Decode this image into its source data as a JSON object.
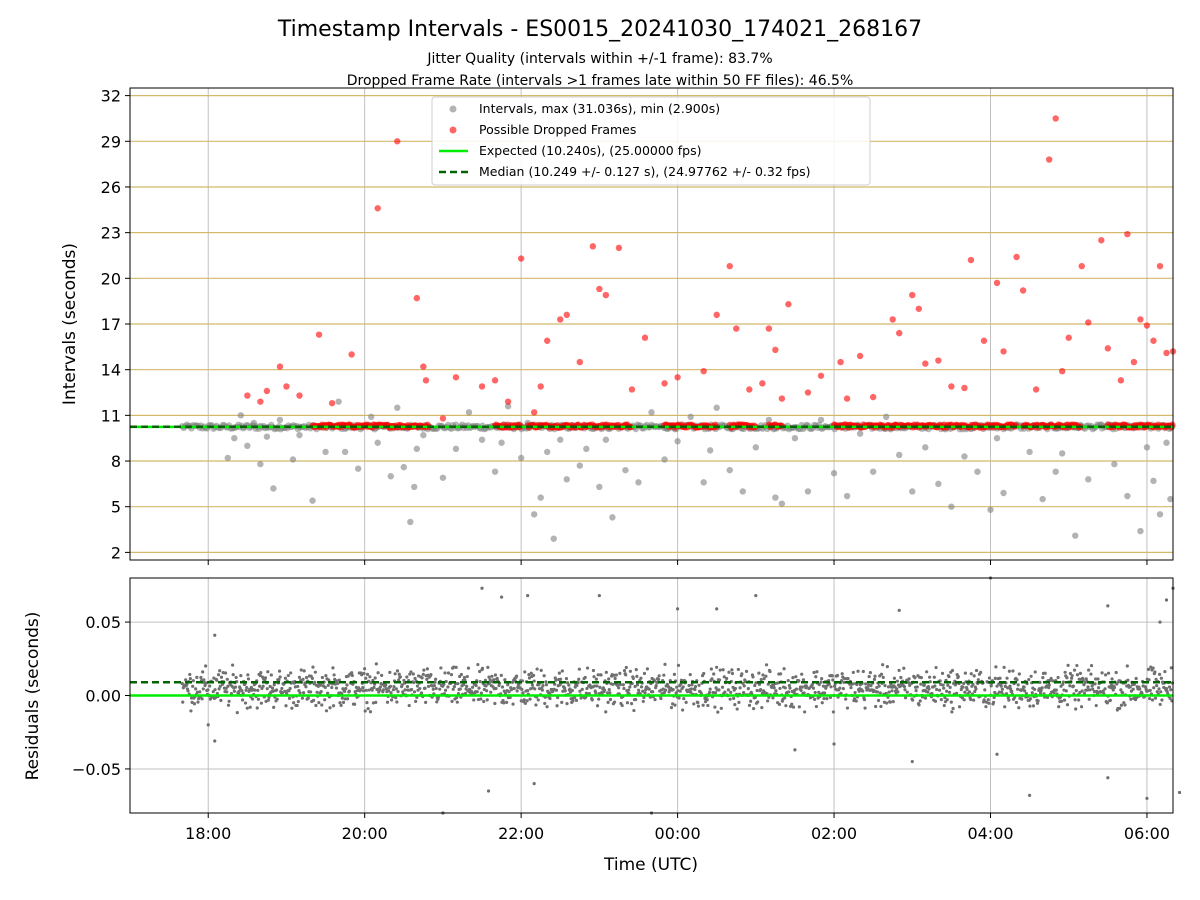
{
  "chart_data": [
    {
      "type": "scatter",
      "panel": "intervals",
      "title": "Timestamp Intervals - ES0015_20241030_174021_268167",
      "subtitle_lines": [
        "Jitter Quality (intervals within +/-1 frame): 83.7%",
        "Dropped Frame Rate (intervals >1 frames late within 50 FF files): 46.5%"
      ],
      "ylabel": "Intervals (seconds)",
      "x_start": "17:00",
      "x_end": "06:20",
      "xlim_hours": [
        17.0,
        30.333
      ],
      "ylim": [
        1.5,
        32.5
      ],
      "y_ticks": [
        2,
        5,
        8,
        11,
        14,
        17,
        20,
        23,
        26,
        29,
        32
      ],
      "grid": true,
      "legend_position": "top-center",
      "colors": {
        "intervals": "#808080",
        "dropped": "#ff0000",
        "expected": "#00ee00",
        "median": "#006400",
        "hgrid": "#d4b96a",
        "vgrid": "#c0c0c0"
      },
      "series": [
        {
          "name": "Intervals, max (31.036s), min (2.900s)",
          "kind": "scatter",
          "band": {
            "center": 10.24,
            "spread": 0.15
          },
          "scatter_points": [
            [
              "18:15",
              8.2
            ],
            [
              "18:20",
              9.5
            ],
            [
              "18:25",
              11.0
            ],
            [
              "18:30",
              9.0
            ],
            [
              "18:35",
              10.5
            ],
            [
              "18:40",
              7.8
            ],
            [
              "18:45",
              9.6
            ],
            [
              "18:50",
              6.2
            ],
            [
              "18:55",
              10.7
            ],
            [
              "19:05",
              8.1
            ],
            [
              "19:10",
              9.7
            ],
            [
              "19:20",
              5.4
            ],
            [
              "19:30",
              8.6
            ],
            [
              "19:40",
              11.9
            ],
            [
              "19:45",
              8.6
            ],
            [
              "19:55",
              7.5
            ],
            [
              "20:05",
              10.9
            ],
            [
              "20:10",
              9.2
            ],
            [
              "20:20",
              7.0
            ],
            [
              "20:25",
              11.5
            ],
            [
              "20:30",
              7.6
            ],
            [
              "20:35",
              4.0
            ],
            [
              "20:38",
              6.3
            ],
            [
              "20:40",
              8.8
            ],
            [
              "20:45",
              9.7
            ],
            [
              "21:00",
              6.9
            ],
            [
              "21:10",
              8.8
            ],
            [
              "21:20",
              11.2
            ],
            [
              "21:30",
              9.4
            ],
            [
              "21:40",
              7.3
            ],
            [
              "21:45",
              9.2
            ],
            [
              "21:50",
              11.6
            ],
            [
              "22:00",
              8.2
            ],
            [
              "22:05",
              10.5
            ],
            [
              "22:10",
              4.5
            ],
            [
              "22:15",
              5.6
            ],
            [
              "22:20",
              8.6
            ],
            [
              "22:25",
              2.9
            ],
            [
              "22:30",
              9.4
            ],
            [
              "22:35",
              6.8
            ],
            [
              "22:45",
              7.7
            ],
            [
              "22:50",
              8.8
            ],
            [
              "23:00",
              6.3
            ],
            [
              "23:05",
              9.4
            ],
            [
              "23:10",
              4.3
            ],
            [
              "23:20",
              7.4
            ],
            [
              "23:30",
              6.6
            ],
            [
              "23:40",
              11.2
            ],
            [
              "23:50",
              8.1
            ],
            [
              "00:00",
              9.3
            ],
            [
              "00:10",
              10.9
            ],
            [
              "00:20",
              6.6
            ],
            [
              "00:25",
              8.7
            ],
            [
              "00:30",
              11.5
            ],
            [
              "00:40",
              7.4
            ],
            [
              "00:50",
              6.0
            ],
            [
              "01:00",
              8.9
            ],
            [
              "01:10",
              10.7
            ],
            [
              "01:15",
              5.6
            ],
            [
              "01:20",
              5.2
            ],
            [
              "01:30",
              9.5
            ],
            [
              "01:40",
              6.0
            ],
            [
              "01:50",
              10.7
            ],
            [
              "02:00",
              7.2
            ],
            [
              "02:10",
              5.7
            ],
            [
              "02:20",
              9.8
            ],
            [
              "02:30",
              7.3
            ],
            [
              "02:40",
              10.9
            ],
            [
              "02:50",
              8.4
            ],
            [
              "03:00",
              6.0
            ],
            [
              "03:10",
              8.9
            ],
            [
              "03:20",
              6.5
            ],
            [
              "03:30",
              5.0
            ],
            [
              "03:40",
              8.3
            ],
            [
              "03:50",
              7.3
            ],
            [
              "04:00",
              4.8
            ],
            [
              "04:05",
              9.5
            ],
            [
              "04:10",
              5.9
            ],
            [
              "04:20",
              10.4
            ],
            [
              "04:30",
              8.6
            ],
            [
              "04:40",
              5.5
            ],
            [
              "04:50",
              7.3
            ],
            [
              "04:55",
              8.5
            ],
            [
              "05:05",
              3.1
            ],
            [
              "05:15",
              6.8
            ],
            [
              "05:25",
              10.4
            ],
            [
              "05:35",
              7.8
            ],
            [
              "05:45",
              5.7
            ],
            [
              "05:55",
              3.4
            ],
            [
              "06:00",
              8.9
            ],
            [
              "06:05",
              6.7
            ],
            [
              "06:10",
              4.5
            ],
            [
              "06:15",
              9.2
            ],
            [
              "06:18",
              5.5
            ]
          ]
        },
        {
          "name": "Possible Dropped Frames",
          "kind": "scatter",
          "band": {
            "center": 10.3,
            "spread": 0.1
          },
          "scatter_points": [
            [
              "18:30",
              12.3
            ],
            [
              "18:40",
              11.9
            ],
            [
              "18:45",
              12.6
            ],
            [
              "18:55",
              14.2
            ],
            [
              "19:00",
              12.9
            ],
            [
              "19:10",
              12.3
            ],
            [
              "19:25",
              16.3
            ],
            [
              "19:35",
              11.8
            ],
            [
              "19:50",
              15.0
            ],
            [
              "20:10",
              24.6
            ],
            [
              "20:25",
              29.0
            ],
            [
              "20:40",
              18.7
            ],
            [
              "20:45",
              14.2
            ],
            [
              "20:47",
              13.3
            ],
            [
              "21:00",
              10.8
            ],
            [
              "21:10",
              13.5
            ],
            [
              "21:30",
              12.9
            ],
            [
              "21:40",
              13.3
            ],
            [
              "21:50",
              11.9
            ],
            [
              "22:00",
              21.3
            ],
            [
              "22:10",
              11.2
            ],
            [
              "22:15",
              12.9
            ],
            [
              "22:20",
              15.9
            ],
            [
              "22:30",
              17.3
            ],
            [
              "22:35",
              17.6
            ],
            [
              "22:45",
              14.5
            ],
            [
              "22:55",
              22.1
            ],
            [
              "23:00",
              19.3
            ],
            [
              "23:05",
              18.9
            ],
            [
              "23:15",
              22.0
            ],
            [
              "23:25",
              12.7
            ],
            [
              "23:35",
              16.1
            ],
            [
              "23:50",
              13.1
            ],
            [
              "00:00",
              13.5
            ],
            [
              "00:20",
              13.9
            ],
            [
              "00:30",
              17.6
            ],
            [
              "00:40",
              20.8
            ],
            [
              "00:45",
              16.7
            ],
            [
              "00:55",
              12.7
            ],
            [
              "01:05",
              13.1
            ],
            [
              "01:10",
              16.7
            ],
            [
              "01:15",
              15.3
            ],
            [
              "01:20",
              12.1
            ],
            [
              "01:25",
              18.3
            ],
            [
              "01:40",
              12.5
            ],
            [
              "01:50",
              13.6
            ],
            [
              "02:05",
              14.5
            ],
            [
              "02:10",
              12.1
            ],
            [
              "02:20",
              14.9
            ],
            [
              "02:30",
              12.2
            ],
            [
              "02:45",
              17.3
            ],
            [
              "02:50",
              16.4
            ],
            [
              "03:00",
              18.9
            ],
            [
              "03:05",
              18.0
            ],
            [
              "03:10",
              14.4
            ],
            [
              "03:20",
              14.6
            ],
            [
              "03:30",
              12.9
            ],
            [
              "03:40",
              12.8
            ],
            [
              "03:45",
              21.2
            ],
            [
              "03:55",
              15.9
            ],
            [
              "04:05",
              19.7
            ],
            [
              "04:10",
              15.2
            ],
            [
              "04:20",
              21.4
            ],
            [
              "04:25",
              19.2
            ],
            [
              "04:35",
              12.7
            ],
            [
              "04:45",
              27.8
            ],
            [
              "04:50",
              30.5
            ],
            [
              "04:55",
              13.9
            ],
            [
              "05:00",
              16.1
            ],
            [
              "05:10",
              20.8
            ],
            [
              "05:15",
              17.1
            ],
            [
              "05:25",
              22.5
            ],
            [
              "05:30",
              15.4
            ],
            [
              "05:40",
              13.3
            ],
            [
              "05:45",
              22.9
            ],
            [
              "05:50",
              14.5
            ],
            [
              "05:55",
              17.3
            ],
            [
              "06:00",
              16.9
            ],
            [
              "06:05",
              15.9
            ],
            [
              "06:10",
              20.8
            ],
            [
              "06:15",
              15.1
            ],
            [
              "06:20",
              15.2
            ]
          ]
        },
        {
          "name": "Expected (10.240s), (25.00000 fps)",
          "kind": "hline",
          "y": 10.24,
          "style": "solid"
        },
        {
          "name": "Median (10.249 +/- 0.127 s), (24.97762 +/- 0.32 fps)",
          "kind": "hline",
          "y": 10.249,
          "style": "dashed"
        }
      ]
    },
    {
      "type": "scatter",
      "panel": "residuals",
      "xlabel": "Time (UTC)",
      "ylabel": "Residuals (seconds)",
      "ylim": [
        -0.08,
        0.08
      ],
      "y_ticks": [
        0.05,
        0.0,
        -0.05
      ],
      "y_tick_labels": [
        "0.05",
        "0.00",
        "−0.05"
      ],
      "x_ticks": [
        "18:00",
        "20:00",
        "22:00",
        "00:00",
        "02:00",
        "04:00",
        "06:00"
      ],
      "grid": true,
      "series": [
        {
          "name": "residuals",
          "kind": "scatter",
          "band": {
            "center": 0.005,
            "spread": 0.012
          },
          "outliers": [
            [
              "18:05",
              0.041
            ],
            [
              "18:05",
              -0.031
            ],
            [
              "18:00",
              -0.02
            ],
            [
              "21:00",
              -0.08
            ],
            [
              "21:30",
              0.073
            ],
            [
              "21:35",
              -0.065
            ],
            [
              "21:45",
              0.067
            ],
            [
              "22:05",
              0.068
            ],
            [
              "22:10",
              -0.06
            ],
            [
              "23:00",
              0.068
            ],
            [
              "23:40",
              -0.08
            ],
            [
              "00:00",
              0.059
            ],
            [
              "00:30",
              0.059
            ],
            [
              "01:00",
              0.068
            ],
            [
              "01:30",
              -0.037
            ],
            [
              "02:00",
              -0.033
            ],
            [
              "02:50",
              0.058
            ],
            [
              "03:00",
              -0.045
            ],
            [
              "04:00",
              0.08
            ],
            [
              "04:05",
              -0.04
            ],
            [
              "04:30",
              -0.068
            ],
            [
              "05:30",
              0.061
            ],
            [
              "05:30",
              -0.056
            ],
            [
              "06:15",
              0.065
            ],
            [
              "06:10",
              0.05
            ],
            [
              "06:20",
              0.073
            ],
            [
              "06:25",
              -0.066
            ],
            [
              "06:00",
              -0.07
            ]
          ]
        },
        {
          "name": "expected",
          "kind": "hline",
          "y": 0.0,
          "style": "solid"
        },
        {
          "name": "median",
          "kind": "hline",
          "y": 0.009,
          "style": "dashed"
        }
      ]
    }
  ]
}
